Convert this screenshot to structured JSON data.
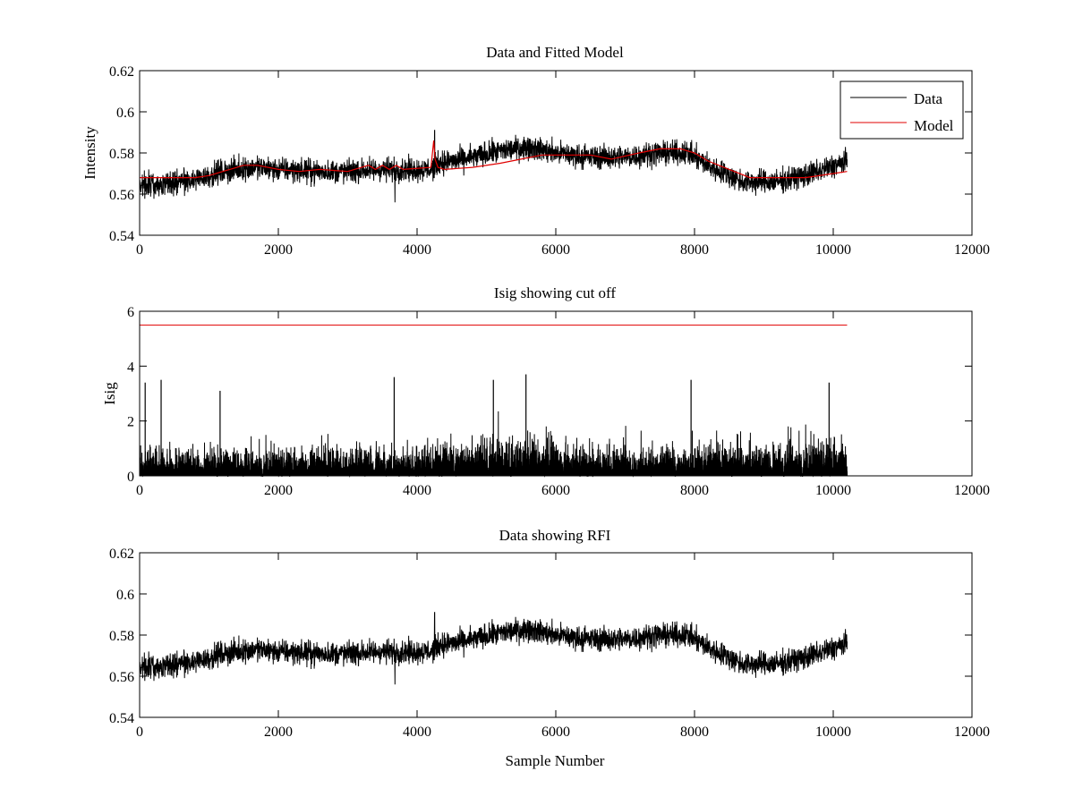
{
  "figure": {
    "background": "#ffffff"
  },
  "colors": {
    "data": "#000000",
    "model": "#e00000",
    "cutoff": "#e00000",
    "axes": "#000000"
  },
  "chart_data": [
    {
      "type": "line",
      "title": "Data and Fitted Model",
      "xlabel": "",
      "ylabel": "Intensity",
      "xlim": [
        0,
        12000
      ],
      "ylim": [
        0.54,
        0.62
      ],
      "xticks": [
        0,
        2000,
        4000,
        6000,
        8000,
        10000,
        12000
      ],
      "xtick_labels": [
        "0",
        "2000",
        "4000",
        "6000",
        "8000",
        "10000",
        "12000"
      ],
      "yticks": [
        0.54,
        0.56,
        0.58,
        0.6,
        0.62
      ],
      "ytick_labels": [
        "0.54",
        "0.56",
        "0.58",
        "0.6",
        "0.62"
      ],
      "legend": {
        "position": "top-right",
        "entries": [
          "Data",
          "Model"
        ]
      },
      "data_extent": [
        0,
        10200
      ],
      "noise_amplitude": 0.0085,
      "baseline": {
        "x": [
          0,
          400,
          800,
          1200,
          1600,
          2000,
          2500,
          3000,
          3500,
          4000,
          4200,
          4300,
          4700,
          5200,
          5600,
          6000,
          6500,
          7000,
          7500,
          7900,
          8300,
          8700,
          9200,
          9700,
          10200
        ],
        "y": [
          0.565,
          0.565,
          0.567,
          0.571,
          0.573,
          0.572,
          0.571,
          0.571,
          0.572,
          0.572,
          0.572,
          0.575,
          0.577,
          0.581,
          0.583,
          0.58,
          0.578,
          0.578,
          0.58,
          0.58,
          0.572,
          0.566,
          0.566,
          0.57,
          0.576
        ]
      },
      "spike": {
        "x": 4250,
        "y_max": 0.591,
        "y_min": 0.568
      },
      "dropout": {
        "x": 3680,
        "y_min": 0.556
      },
      "model": {
        "x": [
          0,
          400,
          800,
          1000,
          1300,
          1500,
          1700,
          2000,
          2300,
          2600,
          3000,
          3300,
          3400,
          3500,
          3600,
          3700,
          3800,
          4200,
          4240,
          4260,
          4300,
          4400,
          4800,
          5200,
          5500,
          5800,
          6200,
          6500,
          6800,
          7200,
          7500,
          7800,
          8000,
          8200,
          8500,
          8800,
          9200,
          9600,
          10000,
          10200
        ],
        "y": [
          0.568,
          0.568,
          0.568,
          0.569,
          0.572,
          0.574,
          0.574,
          0.572,
          0.571,
          0.572,
          0.571,
          0.574,
          0.572,
          0.574,
          0.572,
          0.574,
          0.572,
          0.573,
          0.586,
          0.577,
          0.573,
          0.572,
          0.573,
          0.575,
          0.577,
          0.579,
          0.579,
          0.579,
          0.577,
          0.58,
          0.582,
          0.582,
          0.58,
          0.576,
          0.572,
          0.568,
          0.568,
          0.568,
          0.57,
          0.571
        ]
      }
    },
    {
      "type": "line",
      "title": "Isig showing cut off",
      "xlabel": "",
      "ylabel": "Isig",
      "xlim": [
        0,
        12000
      ],
      "ylim": [
        0,
        6
      ],
      "xticks": [
        0,
        2000,
        4000,
        6000,
        8000,
        10000,
        12000
      ],
      "xtick_labels": [
        "0",
        "2000",
        "4000",
        "6000",
        "8000",
        "10000",
        "12000"
      ],
      "yticks": [
        0,
        2,
        4,
        6
      ],
      "ytick_labels": [
        "0",
        "2",
        "4",
        "6"
      ],
      "data_extent": [
        0,
        10200
      ],
      "cutoff": {
        "x": [
          0,
          10200
        ],
        "y": 5.5
      },
      "envelope": {
        "x": [
          0,
          1000,
          2000,
          3000,
          4000,
          5000,
          5600,
          6500,
          7500,
          8500,
          9500,
          10200
        ],
        "y": [
          2.0,
          1.8,
          1.8,
          2.0,
          2.2,
          2.6,
          2.6,
          2.0,
          2.0,
          2.3,
          2.2,
          2.6
        ]
      },
      "peaks": [
        {
          "x": 80,
          "y": 3.4
        },
        {
          "x": 310,
          "y": 3.5
        },
        {
          "x": 1160,
          "y": 3.1
        },
        {
          "x": 3670,
          "y": 3.6
        },
        {
          "x": 5100,
          "y": 3.5
        },
        {
          "x": 5570,
          "y": 3.7
        },
        {
          "x": 7950,
          "y": 3.5
        },
        {
          "x": 9940,
          "y": 3.4
        }
      ]
    },
    {
      "type": "line",
      "title": "Data showing RFI",
      "xlabel": "Sample Number",
      "ylabel": "",
      "xlim": [
        0,
        12000
      ],
      "ylim": [
        0.54,
        0.62
      ],
      "xticks": [
        0,
        2000,
        4000,
        6000,
        8000,
        10000,
        12000
      ],
      "xtick_labels": [
        "0",
        "2000",
        "4000",
        "6000",
        "8000",
        "10000",
        "12000"
      ],
      "yticks": [
        0.54,
        0.56,
        0.58,
        0.6,
        0.62
      ],
      "ytick_labels": [
        "0.54",
        "0.56",
        "0.58",
        "0.6",
        "0.62"
      ],
      "data_extent": [
        0,
        10200
      ],
      "series_ref": "same data as panel 1"
    }
  ]
}
